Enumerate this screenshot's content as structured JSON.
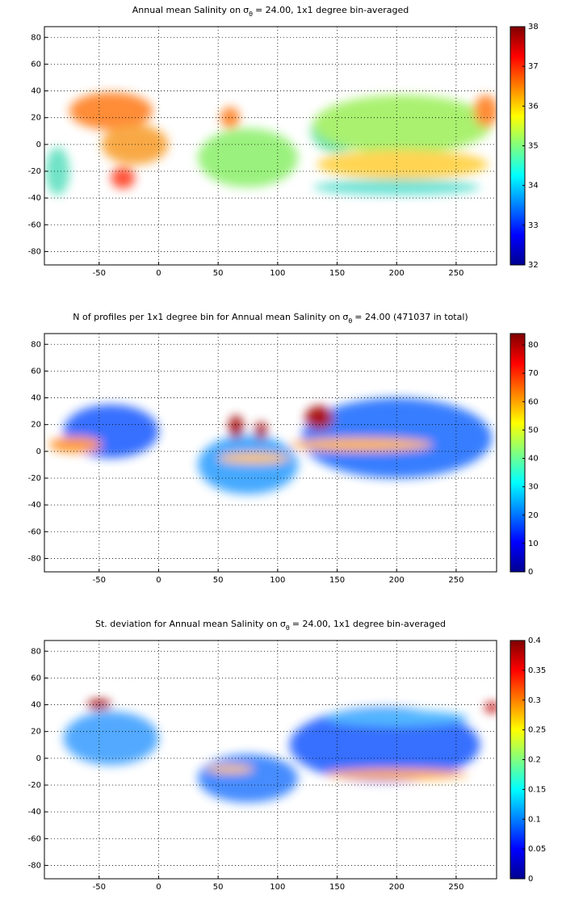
{
  "charts": [
    {
      "type": "map",
      "title": "Annual mean Salinity on",
      "title_symbol": "σ",
      "title_subscript": "θ",
      "title_rest": "= 24.00, 1x1 degree bin-averaged",
      "xlim": [
        -96,
        284
      ],
      "ylim": [
        -90,
        88
      ],
      "xticks": [
        -50,
        0,
        50,
        100,
        150,
        200,
        250
      ],
      "yticks": [
        -80,
        -60,
        -40,
        -20,
        0,
        20,
        40,
        60,
        80
      ],
      "grid": true,
      "colorbar": {
        "colormap": "jet",
        "lim": [
          32,
          38
        ],
        "ticks": [
          32,
          33,
          34,
          35,
          36,
          37,
          38
        ]
      }
    },
    {
      "type": "map",
      "title": "N of profiles per 1x1 degree bin for Annual mean Salinity on",
      "title_symbol": "σ",
      "title_subscript": "θ",
      "title_rest": "= 24.00 (471037 in total)",
      "xlim": [
        -96,
        284
      ],
      "ylim": [
        -90,
        88
      ],
      "xticks": [
        -50,
        0,
        50,
        100,
        150,
        200,
        250
      ],
      "yticks": [
        -80,
        -60,
        -40,
        -20,
        0,
        20,
        40,
        60,
        80
      ],
      "grid": true,
      "colorbar": {
        "colormap": "jet",
        "lim": [
          0,
          84
        ],
        "ticks": [
          0,
          10,
          20,
          30,
          40,
          50,
          60,
          70,
          80
        ]
      }
    },
    {
      "type": "map",
      "title": "St. deviation for Annual mean Salinity on",
      "title_symbol": "σ",
      "title_subscript": "θ",
      "title_rest": "= 24.00, 1x1 degree bin-averaged",
      "xlim": [
        -96,
        284
      ],
      "ylim": [
        -90,
        88
      ],
      "xticks": [
        -50,
        0,
        50,
        100,
        150,
        200,
        250
      ],
      "yticks": [
        -80,
        -60,
        -40,
        -20,
        0,
        20,
        40,
        60,
        80
      ],
      "grid": true,
      "colorbar": {
        "colormap": "jet",
        "lim": [
          0,
          0.4
        ],
        "ticks": [
          0,
          0.05,
          0.1,
          0.15,
          0.2,
          0.25,
          0.3,
          0.35,
          0.4
        ]
      }
    }
  ]
}
